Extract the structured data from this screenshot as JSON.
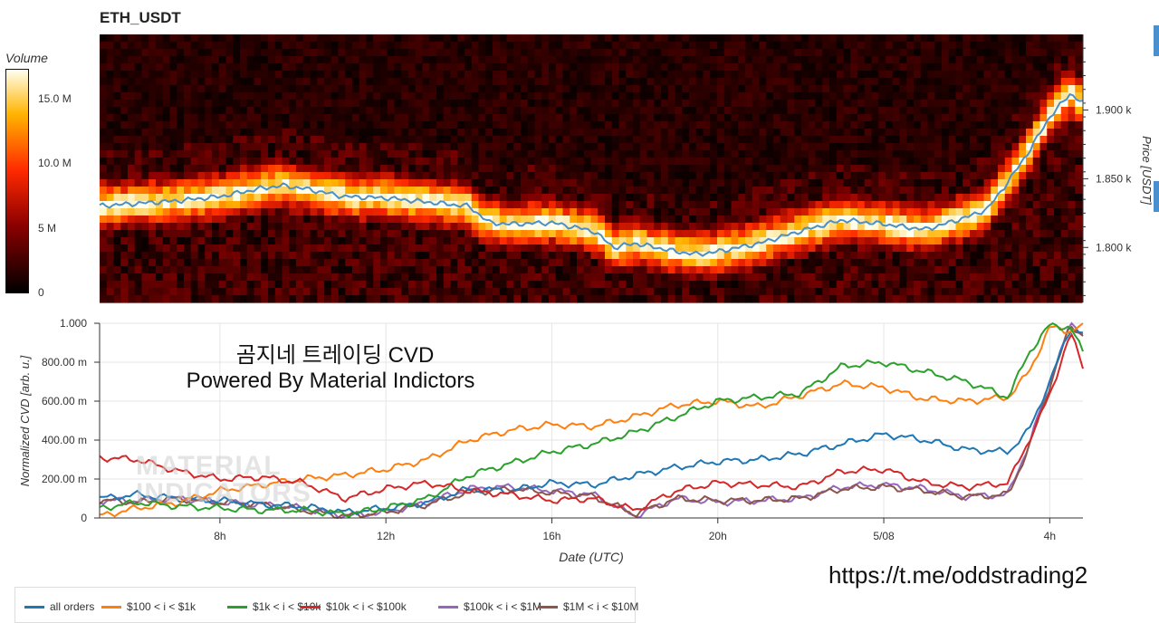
{
  "title": "ETH_USDT",
  "colorbar": {
    "title": "Volume",
    "ticks": [
      "15.0 M",
      "10.0 M",
      "5 M",
      "0"
    ]
  },
  "price_axis": {
    "label": "Price [USDT]",
    "ticks": [
      "1.900 k",
      "1.850 k",
      "1.800 k"
    ]
  },
  "cvd_axis": {
    "label": "Normalized CVD [arb. u.]",
    "ticks": [
      "1.000",
      "800.00 m",
      "600.00 m",
      "400.00 m",
      "200.00 m",
      "0"
    ]
  },
  "x_axis": {
    "label": "Date (UTC)",
    "ticks": [
      "8h",
      "12h",
      "16h",
      "20h",
      "5/08",
      "4h"
    ]
  },
  "overlay": {
    "title": "곰지네 트레이딩 CVD",
    "subtitle": "Powered By Material Indictors"
  },
  "watermark": [
    "MATERIAL",
    "INDICATORS"
  ],
  "url": "https://t.me/oddstrading2",
  "legend": [
    {
      "label": "all orders",
      "color": "#1f77b4"
    },
    {
      "label": "$100 < i < $1k",
      "color": "#ff7f0e"
    },
    {
      "label": "$1k < i < $10k",
      "color": "#2ca02c"
    },
    {
      "label": "$10k < i < $100k",
      "color": "#d62728"
    },
    {
      "label": "$100k < i < $1M",
      "color": "#9467bd"
    },
    {
      "label": "$1M < i < $10M",
      "color": "#8c564b"
    }
  ],
  "chart_data": [
    {
      "type": "heatmap",
      "title": "ETH_USDT",
      "ylabel": "Price [USDT]",
      "ylim": [
        1760,
        1955
      ],
      "colorbar_label": "Volume",
      "colorbar_range": [
        0,
        17500000
      ],
      "price_line": {
        "color": "#4682b4",
        "x": [
          5.0,
          6.0,
          7.0,
          8.0,
          9.0,
          9.5,
          10.0,
          11.0,
          12.0,
          13.0,
          14.0,
          14.5,
          15.0,
          16.0,
          17.0,
          17.5,
          18.0,
          19.0,
          19.5,
          20.0,
          21.0,
          22.0,
          23.0,
          24.0,
          25.0,
          26.0,
          26.5,
          27.0,
          27.5,
          28.0,
          28.5,
          28.8
        ],
        "y": [
          1830,
          1832,
          1834,
          1837,
          1843,
          1845,
          1843,
          1837,
          1836,
          1833,
          1830,
          1818,
          1817,
          1818,
          1812,
          1800,
          1803,
          1797,
          1795,
          1797,
          1803,
          1812,
          1820,
          1817,
          1813,
          1822,
          1828,
          1848,
          1870,
          1895,
          1912,
          1905
        ]
      }
    },
    {
      "type": "line",
      "xlabel": "Date (UTC)",
      "ylabel": "Normalized CVD [arb. u.]",
      "ylim": [
        0,
        1.0
      ],
      "xlim": [
        5.1,
        28.8
      ],
      "x": [
        5.1,
        6.0,
        7.0,
        8.0,
        9.0,
        10.0,
        11.0,
        12.0,
        13.0,
        14.0,
        15.0,
        16.0,
        17.0,
        18.0,
        19.0,
        20.0,
        21.0,
        22.0,
        23.0,
        24.0,
        25.0,
        26.0,
        27.0,
        27.5,
        28.0,
        28.5,
        28.8
      ],
      "series": [
        {
          "name": "all orders",
          "color": "#1f77b4",
          "values": [
            0.1,
            0.12,
            0.1,
            0.09,
            0.07,
            0.06,
            0.03,
            0.05,
            0.08,
            0.15,
            0.14,
            0.18,
            0.17,
            0.22,
            0.26,
            0.29,
            0.3,
            0.33,
            0.38,
            0.43,
            0.4,
            0.35,
            0.34,
            0.45,
            0.7,
            0.98,
            0.95
          ]
        },
        {
          "name": "$100 < i < $1k",
          "color": "#ff7f0e",
          "values": [
            0.01,
            0.05,
            0.08,
            0.14,
            0.17,
            0.2,
            0.22,
            0.25,
            0.3,
            0.4,
            0.45,
            0.48,
            0.47,
            0.52,
            0.58,
            0.6,
            0.57,
            0.63,
            0.69,
            0.67,
            0.61,
            0.6,
            0.62,
            0.75,
            0.98,
            0.96,
            0.99
          ]
        },
        {
          "name": "$1k < i < $10k",
          "color": "#2ca02c",
          "values": [
            0.05,
            0.08,
            0.06,
            0.05,
            0.04,
            0.04,
            0.02,
            0.05,
            0.1,
            0.22,
            0.28,
            0.34,
            0.38,
            0.44,
            0.52,
            0.6,
            0.62,
            0.64,
            0.78,
            0.8,
            0.75,
            0.7,
            0.62,
            0.85,
            0.99,
            0.98,
            0.85
          ]
        },
        {
          "name": "$10k < i < $100k",
          "color": "#d62728",
          "values": [
            0.31,
            0.3,
            0.24,
            0.2,
            0.21,
            0.18,
            0.1,
            0.15,
            0.18,
            0.14,
            0.12,
            0.09,
            0.1,
            0.04,
            0.14,
            0.18,
            0.17,
            0.16,
            0.24,
            0.25,
            0.18,
            0.16,
            0.18,
            0.4,
            0.63,
            0.95,
            0.78
          ]
        },
        {
          "name": "$100k < i < $1M",
          "color": "#9467bd",
          "values": [
            0.09,
            0.09,
            0.1,
            0.08,
            0.07,
            0.05,
            0.01,
            0.03,
            0.08,
            0.15,
            0.16,
            0.14,
            0.12,
            0.01,
            0.1,
            0.08,
            0.09,
            0.1,
            0.16,
            0.17,
            0.15,
            0.11,
            0.12,
            0.38,
            0.7,
            1.0,
            0.95
          ]
        },
        {
          "name": "$1M < i < $10M",
          "color": "#8c564b",
          "values": [
            0.09,
            0.08,
            0.1,
            0.08,
            0.07,
            0.04,
            0.01,
            0.03,
            0.07,
            0.13,
            0.15,
            0.13,
            0.11,
            0.02,
            0.1,
            0.09,
            0.09,
            0.1,
            0.15,
            0.16,
            0.14,
            0.11,
            0.12,
            0.36,
            0.68,
            0.99,
            0.94
          ]
        }
      ]
    }
  ]
}
